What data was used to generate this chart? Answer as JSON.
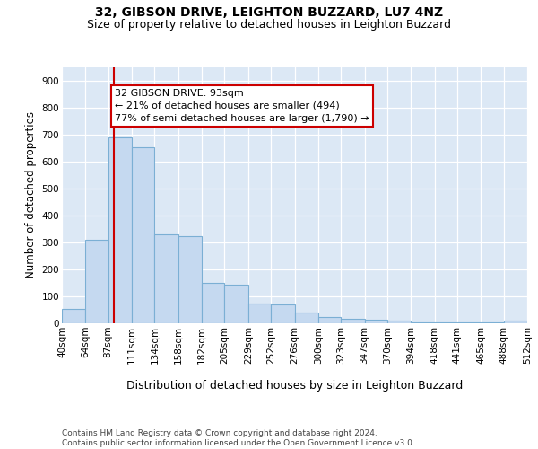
{
  "title": "32, GIBSON DRIVE, LEIGHTON BUZZARD, LU7 4NZ",
  "subtitle": "Size of property relative to detached houses in Leighton Buzzard",
  "xlabel": "Distribution of detached houses by size in Leighton Buzzard",
  "ylabel": "Number of detached properties",
  "bar_color": "#c5d9f0",
  "bar_edge_color": "#7bafd4",
  "vline_x": 93,
  "vline_color": "#cc0000",
  "annotation_text": "32 GIBSON DRIVE: 93sqm\n← 21% of detached houses are smaller (494)\n77% of semi-detached houses are larger (1,790) →",
  "annotation_box_color": "#ffffff",
  "annotation_box_edge": "#cc0000",
  "footer": "Contains HM Land Registry data © Crown copyright and database right 2024.\nContains public sector information licensed under the Open Government Licence v3.0.",
  "bin_edges": [
    40,
    64,
    87,
    111,
    134,
    158,
    182,
    205,
    229,
    252,
    276,
    300,
    323,
    347,
    370,
    394,
    418,
    441,
    465,
    488,
    512
  ],
  "bar_heights": [
    55,
    310,
    690,
    655,
    330,
    325,
    150,
    145,
    75,
    70,
    40,
    25,
    18,
    15,
    10,
    5,
    3,
    3,
    2,
    10
  ],
  "ylim": [
    0,
    950
  ],
  "yticks": [
    0,
    100,
    200,
    300,
    400,
    500,
    600,
    700,
    800,
    900
  ],
  "plot_background": "#dce8f5",
  "title_fontsize": 10,
  "subtitle_fontsize": 9,
  "tick_fontsize": 7.5,
  "ylabel_fontsize": 8.5,
  "xlabel_fontsize": 9,
  "annotation_fontsize": 8,
  "footer_fontsize": 6.5
}
